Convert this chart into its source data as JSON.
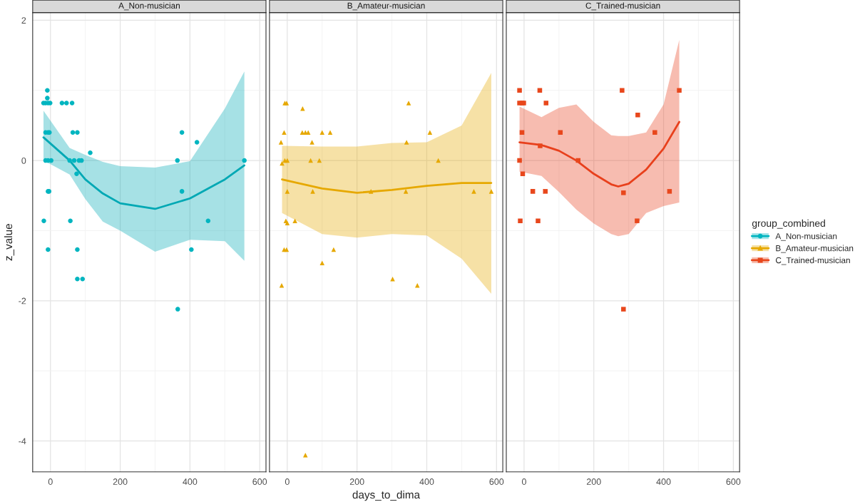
{
  "chart_data": [
    {
      "type": "scatter",
      "title": "A_Non-musician",
      "ylabel": "z_value",
      "xlim": [
        -51,
        618
      ],
      "ylim": [
        -4.44,
        2.11
      ],
      "xticks": [
        0,
        200,
        400,
        600
      ],
      "yticks": [
        -4,
        -2,
        0,
        2
      ],
      "grid": true,
      "line_style": "solid",
      "series": [
        {
          "name": "A_Non-musician",
          "color": "#00b5c0",
          "marker": "circle",
          "x": [
            -9,
            -9,
            -20,
            -14,
            -7,
            -1,
            33,
            46,
            62,
            -14,
            -7,
            -3,
            64,
            77,
            377,
            420,
            114,
            -14,
            -7,
            2,
            55,
            68,
            82,
            89,
            364,
            556,
            75,
            -7,
            -4,
            377,
            -19,
            57,
            452,
            -7,
            77,
            404,
            77,
            92,
            365
          ],
          "values": [
            1.0,
            0.89,
            0.82,
            0.82,
            0.82,
            0.82,
            0.82,
            0.82,
            0.82,
            0.4,
            0.4,
            0.4,
            0.4,
            0.4,
            0.4,
            0.26,
            0.11,
            0,
            0,
            0,
            0,
            0,
            0,
            0,
            0,
            0,
            -0.19,
            -0.44,
            -0.44,
            -0.44,
            -0.86,
            -0.86,
            -0.86,
            -1.27,
            -1.27,
            -1.27,
            -1.69,
            -1.69,
            -2.12
          ]
        },
        {
          "type": "line",
          "color": "#00a8b4",
          "x": [
            -20,
            55,
            100,
            150,
            200,
            300,
            400,
            500,
            556
          ],
          "values": [
            0.33,
            0.0,
            -0.27,
            -0.47,
            -0.61,
            -0.69,
            -0.54,
            -0.27,
            -0.07
          ],
          "lower": [
            0.0,
            -0.2,
            -0.55,
            -0.87,
            -1.0,
            -1.3,
            -1.13,
            -1.15,
            -1.43
          ],
          "upper": [
            0.71,
            0.18,
            0.08,
            -0.02,
            -0.08,
            -0.1,
            -0.01,
            0.74,
            1.27
          ]
        }
      ]
    },
    {
      "type": "scatter",
      "title": "B_Amateur-musician",
      "xlabel": "days_to_dima",
      "xlim": [
        -51,
        618
      ],
      "ylim": [
        -4.44,
        2.11
      ],
      "xticks": [
        0,
        200,
        400,
        600
      ],
      "yticks": [
        -4,
        -2,
        0,
        2
      ],
      "grid": true,
      "tick_labels": "x",
      "line_style": "solid",
      "series": [
        {
          "name": "B_Amateur-musician",
          "color": "#e6a800",
          "marker": "triangle",
          "x": [
            -7,
            -2,
            44,
            -9,
            43,
            52,
            60,
            100,
            123,
            409,
            -18,
            71,
            342,
            348,
            -15,
            -7,
            0,
            67,
            92,
            433,
            0,
            73,
            240,
            340,
            535,
            585,
            -4,
            0,
            22,
            -9,
            -2,
            133,
            100,
            -16,
            302,
            373,
            52
          ],
          "values": [
            0.82,
            0.82,
            0.74,
            0.4,
            0.4,
            0.4,
            0.4,
            0.4,
            0.4,
            0.4,
            0.26,
            0.26,
            0.26,
            0.82,
            -0.04,
            0,
            0,
            0,
            0,
            0,
            -0.44,
            -0.44,
            -0.44,
            -0.44,
            -0.44,
            -0.44,
            -0.86,
            -0.89,
            -0.86,
            -1.27,
            -1.27,
            -1.27,
            -1.46,
            -1.78,
            -1.69,
            -1.78,
            -4.2
          ]
        },
        {
          "type": "line",
          "color": "#e6a800",
          "x": [
            -15,
            100,
            200,
            300,
            400,
            500,
            585
          ],
          "values": [
            -0.27,
            -0.4,
            -0.46,
            -0.42,
            -0.36,
            -0.32,
            -0.32
          ],
          "lower": [
            -0.75,
            -1.05,
            -1.1,
            -1.05,
            -1.07,
            -1.4,
            -1.9
          ],
          "upper": [
            0.21,
            0.2,
            0.2,
            0.25,
            0.26,
            0.5,
            1.25
          ]
        }
      ]
    },
    {
      "type": "scatter",
      "title": "C_Trained-musician",
      "xlim": [
        -51,
        618
      ],
      "ylim": [
        -4.44,
        2.11
      ],
      "xticks": [
        0,
        200,
        400,
        600
      ],
      "yticks": [
        -4,
        -2,
        0,
        2
      ],
      "grid": true,
      "tick_labels": "x",
      "line_style": "solid",
      "legend": "right",
      "legend_title": "group_combined",
      "series": [
        {
          "name": "C_Trained-musician",
          "color": "#e8471c",
          "marker": "square",
          "x": [
            -13,
            45,
            281,
            445,
            -13,
            -6,
            -1,
            63,
            326,
            -6,
            104,
            375,
            46,
            -13,
            155,
            -4,
            25,
            61,
            285,
            417,
            -11,
            40,
            324,
            285
          ],
          "values": [
            1.0,
            1.0,
            1.0,
            1.0,
            0.82,
            0.82,
            0.82,
            0.82,
            0.65,
            0.4,
            0.4,
            0.4,
            0.21,
            0,
            0,
            -0.19,
            -0.44,
            -0.44,
            -0.46,
            -0.44,
            -0.86,
            -0.86,
            -0.86,
            -2.12
          ]
        },
        {
          "type": "line",
          "color": "#e8401c",
          "x": [
            -13,
            50,
            100,
            150,
            200,
            250,
            270,
            300,
            350,
            400,
            445
          ],
          "values": [
            0.26,
            0.22,
            0.14,
            0.0,
            -0.19,
            -0.34,
            -0.37,
            -0.33,
            -0.13,
            0.17,
            0.55
          ],
          "lower": [
            -0.16,
            -0.22,
            -0.45,
            -0.7,
            -0.9,
            -1.05,
            -1.08,
            -1.05,
            -0.75,
            -0.65,
            -0.6
          ],
          "upper": [
            0.77,
            0.62,
            0.75,
            0.8,
            0.55,
            0.36,
            0.35,
            0.35,
            0.4,
            0.8,
            1.72
          ]
        }
      ]
    }
  ]
}
